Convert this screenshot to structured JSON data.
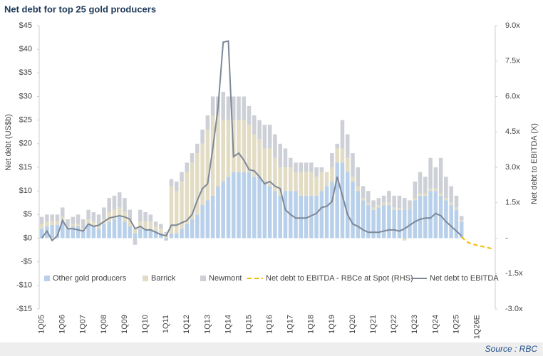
{
  "chart_data": {
    "type": "bar",
    "stacked": true,
    "title": "Net debt for top 25 gold producers",
    "ylabel": "Net debt (US$b)",
    "y2label": "Net debt to EBITDA (X)",
    "source": "Source : RBC",
    "categories": [
      "1Q05",
      null,
      null,
      null,
      "1Q06",
      null,
      null,
      null,
      "1Q07",
      null,
      null,
      null,
      "1Q08",
      null,
      null,
      null,
      "1Q09",
      null,
      null,
      null,
      "1Q10",
      null,
      null,
      null,
      "1Q11",
      null,
      null,
      null,
      "1Q12",
      null,
      null,
      null,
      "1Q13",
      null,
      null,
      null,
      "1Q14",
      null,
      null,
      null,
      "1Q15",
      null,
      null,
      null,
      "1Q16",
      null,
      null,
      null,
      "1Q17",
      null,
      null,
      null,
      "1Q18",
      null,
      null,
      null,
      "1Q19",
      null,
      null,
      null,
      "1Q20",
      null,
      null,
      null,
      "1Q21",
      null,
      null,
      null,
      "1Q22",
      null,
      null,
      null,
      "1Q23",
      null,
      null,
      null,
      "1Q24",
      null,
      null,
      null,
      "1Q25",
      null,
      null,
      null,
      "1Q26E",
      null,
      null,
      null
    ],
    "ylim": [
      -15,
      45
    ],
    "yticks": [
      {
        "value": -15,
        "label": "-$15"
      },
      {
        "value": -10,
        "label": "-$10"
      },
      {
        "value": -5,
        "label": "-$5"
      },
      {
        "value": 0,
        "label": "$0"
      },
      {
        "value": 5,
        "label": "$5"
      },
      {
        "value": 10,
        "label": "$10"
      },
      {
        "value": 15,
        "label": "$15"
      },
      {
        "value": 20,
        "label": "$20"
      },
      {
        "value": 25,
        "label": "$25"
      },
      {
        "value": 30,
        "label": "$30"
      },
      {
        "value": 35,
        "label": "$35"
      },
      {
        "value": 40,
        "label": "$40"
      },
      {
        "value": 45,
        "label": "$45"
      }
    ],
    "y2lim": [
      -3,
      9
    ],
    "y2ticks": [
      {
        "value": -3,
        "label": "-3.0x"
      },
      {
        "value": -1.5,
        "label": "-1.5x"
      },
      {
        "value": 0,
        "label": "-"
      },
      {
        "value": 1.5,
        "label": "1.5x"
      },
      {
        "value": 3,
        "label": "3.0x"
      },
      {
        "value": 4.5,
        "label": "4.5x"
      },
      {
        "value": 6,
        "label": "6.0x"
      },
      {
        "value": 7.5,
        "label": "7.5x"
      },
      {
        "value": 9,
        "label": "9.0x"
      }
    ],
    "legend": "bottom",
    "series": [
      {
        "name": "Other gold producers",
        "type": "bar",
        "color": "#b9d0ea",
        "values": [
          2,
          2.5,
          2.8,
          2.8,
          3.5,
          2,
          2.5,
          2.5,
          1.5,
          3,
          2.5,
          2,
          3,
          3.5,
          4,
          4.5,
          3.5,
          2.5,
          1,
          2,
          2,
          2,
          1.5,
          1,
          -0.5,
          1,
          1,
          2,
          3,
          4,
          5,
          7,
          8,
          9,
          11,
          12,
          13,
          14,
          14,
          14,
          14,
          13,
          13,
          12,
          11,
          10,
          9,
          10,
          10,
          10,
          9,
          9,
          9,
          9,
          10,
          11,
          12,
          16,
          16,
          14,
          12,
          10,
          8,
          7,
          6,
          6.5,
          7,
          7,
          6,
          6,
          6,
          6,
          8,
          9,
          9,
          10,
          10,
          9,
          8,
          7,
          6,
          3.5,
          null,
          null,
          null,
          null,
          null,
          null
        ]
      },
      {
        "name": "Barrick",
        "type": "bar",
        "color": "#e3dcc4",
        "values": [
          1,
          1,
          0.8,
          0.8,
          1,
          0.5,
          0.5,
          0.5,
          0.5,
          1,
          1,
          1,
          1,
          2,
          2,
          2,
          2,
          1.5,
          1,
          1.5,
          1.5,
          1.5,
          1,
          1,
          0.5,
          10,
          9,
          10,
          11,
          12,
          13,
          13,
          15,
          17,
          15,
          13,
          12,
          11,
          11,
          11,
          10,
          9,
          8,
          7,
          8,
          7,
          6,
          5,
          5,
          4,
          5,
          5,
          5,
          4,
          4,
          3,
          3,
          3,
          3,
          3,
          1,
          1,
          0.5,
          0.5,
          0.5,
          0.5,
          0.5,
          0.5,
          0.5,
          0.3,
          -0.5,
          0,
          0.5,
          0.5,
          0.5,
          0.5,
          0.5,
          0.5,
          0.5,
          0.5,
          0.5,
          0.3,
          null,
          null,
          null,
          null,
          null,
          null
        ]
      },
      {
        "name": "Newmont",
        "type": "bar",
        "color": "#cdd0d6",
        "values": [
          1.5,
          1.5,
          1.4,
          1.4,
          2,
          1.5,
          1.5,
          2,
          2,
          2,
          2,
          2,
          2.5,
          3,
          3,
          3.2,
          3,
          2,
          -1.4,
          2.5,
          2,
          1.5,
          1,
          1,
          0.8,
          1.5,
          2,
          2,
          2,
          2,
          2,
          3,
          3,
          4,
          4,
          6,
          5,
          5,
          5,
          5,
          4,
          4,
          4,
          5,
          5,
          5,
          5,
          4,
          2,
          2,
          2,
          2,
          2,
          2,
          1,
          0,
          3,
          1,
          6,
          5,
          5,
          4,
          2.5,
          2.5,
          1.5,
          1.5,
          1.5,
          2.5,
          2.5,
          2.7,
          2.5,
          2,
          3.5,
          4.5,
          3.5,
          6.5,
          4.5,
          7.5,
          4.5,
          3.5,
          2.5,
          0.9,
          null,
          null,
          null,
          null,
          null,
          null
        ]
      },
      {
        "name": "Net debt to EBITDA - RBCe at Spot (RHS)",
        "type": "line",
        "axis": "y2",
        "dashed": true,
        "color": "#f5b800",
        "values": [
          null,
          null,
          null,
          null,
          null,
          null,
          null,
          null,
          null,
          null,
          null,
          null,
          null,
          null,
          null,
          null,
          null,
          null,
          null,
          null,
          null,
          null,
          null,
          null,
          null,
          null,
          null,
          null,
          null,
          null,
          null,
          null,
          null,
          null,
          null,
          null,
          null,
          null,
          null,
          null,
          null,
          null,
          null,
          null,
          null,
          null,
          null,
          null,
          null,
          null,
          null,
          null,
          null,
          null,
          null,
          null,
          null,
          null,
          null,
          null,
          null,
          null,
          null,
          null,
          null,
          null,
          null,
          null,
          null,
          null,
          null,
          null,
          null,
          null,
          null,
          null,
          null,
          null,
          null,
          null,
          null,
          0.05,
          -0.15,
          -0.25,
          -0.3,
          -0.35,
          -0.4,
          -0.45
        ]
      },
      {
        "name": "Net debt to EBITDA",
        "type": "line",
        "axis": "y2",
        "color": "#7d8898",
        "values": [
          0,
          0.3,
          -0.1,
          0.1,
          0.75,
          0.4,
          0.4,
          0.35,
          0.3,
          0.6,
          0.5,
          0.55,
          0.7,
          0.85,
          0.9,
          0.95,
          0.9,
          0.8,
          0.4,
          0.5,
          0.35,
          0.35,
          0.25,
          0.15,
          0.1,
          0.55,
          0.55,
          0.65,
          0.75,
          1,
          1.6,
          2.1,
          2.3,
          3.8,
          5.5,
          8.3,
          8.35,
          3.45,
          3.6,
          3.3,
          2.9,
          2.85,
          2.6,
          2.3,
          2.4,
          2.2,
          2.1,
          1.2,
          1,
          0.85,
          0.85,
          0.85,
          0.95,
          1.05,
          1.3,
          1.35,
          1.55,
          2.6,
          1.8,
          1,
          0.6,
          0.5,
          0.35,
          0.25,
          0.25,
          0.25,
          0.3,
          0.35,
          0.35,
          0.3,
          0.4,
          0.55,
          0.7,
          0.8,
          0.85,
          0.85,
          1.05,
          0.95,
          0.7,
          0.5,
          0.3,
          0.1,
          null,
          null,
          null,
          null,
          null,
          null
        ]
      }
    ]
  }
}
